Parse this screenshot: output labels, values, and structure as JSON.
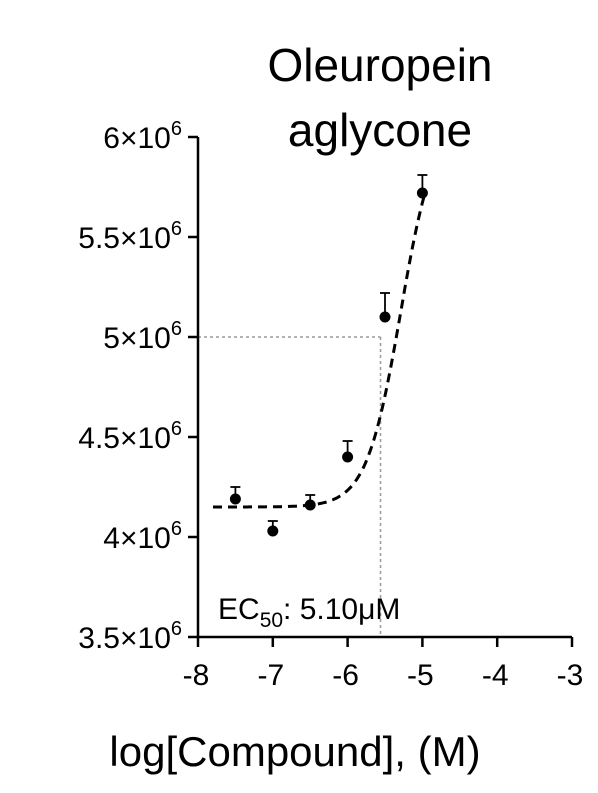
{
  "chart_data": {
    "type": "scatter",
    "title_lines": [
      "Oleuropein",
      "aglycone"
    ],
    "xlabel": "log[Compound], (M)",
    "ylabel": "",
    "xlim": [
      -8,
      -3
    ],
    "ylim": [
      3500000,
      6000000
    ],
    "x_ticks": [
      -8,
      -7,
      -6,
      -5,
      -4,
      -3
    ],
    "x_tick_labels": [
      "-8",
      "-7",
      "-6",
      "-5",
      "-4",
      "-3"
    ],
    "y_ticks": [
      3500000,
      4000000,
      4500000,
      5000000,
      5500000,
      6000000
    ],
    "y_tick_labels": [
      {
        "mantissa": "3.5",
        "exp": "6"
      },
      {
        "mantissa": "4",
        "exp": "6"
      },
      {
        "mantissa": "4.5",
        "exp": "6"
      },
      {
        "mantissa": "5",
        "exp": "6"
      },
      {
        "mantissa": "5.5",
        "exp": "6"
      },
      {
        "mantissa": "6",
        "exp": "6"
      }
    ],
    "points": [
      {
        "x": -7.5,
        "y": 4190000,
        "err": 60000
      },
      {
        "x": -7.0,
        "y": 4030000,
        "err": 50000
      },
      {
        "x": -6.5,
        "y": 4160000,
        "err": 50000
      },
      {
        "x": -6.0,
        "y": 4400000,
        "err": 80000
      },
      {
        "x": -5.5,
        "y": 5100000,
        "err": 120000
      },
      {
        "x": -5.0,
        "y": 5720000,
        "err": 90000
      }
    ],
    "fit": {
      "type": "sigmoid",
      "bottom": 4150000,
      "top": 6100000,
      "logEC50": -5.29,
      "hill": 1.9,
      "x_range": [
        -7.8,
        -4.95
      ]
    },
    "reference_line": {
      "x": -5.56,
      "y": 5000000
    },
    "annotation": {
      "prefix": "EC",
      "subscript": "50",
      "suffix": ": 5.10μM"
    },
    "series_color": "#000000",
    "reference_color": "#9a9a9a"
  }
}
